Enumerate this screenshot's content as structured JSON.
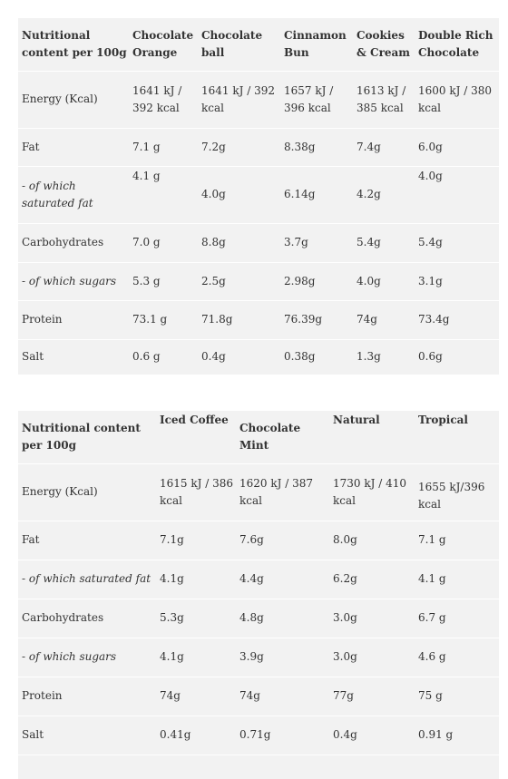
{
  "table1": {
    "headers": [
      "Nutritional content per 100g",
      "Chocolate Orange",
      "Chocolate ball",
      "Cinnamon Bun",
      "Cookies & Cream",
      "Double Rich Chocolate"
    ],
    "rows": [
      {
        "label": "Energy (Kcal)",
        "italic": false,
        "values": [
          "1641 kJ / 392 kcal",
          "1641 kJ / 392 kcal",
          "1657 kJ / 396 kcal",
          "1613 kJ / 385 kcal",
          "1600 kJ / 380 kcal"
        ]
      },
      {
        "label": "Fat",
        "italic": false,
        "values": [
          "7.1 g",
          "7.2g",
          "8.38g",
          "7.4g",
          "6.0g"
        ]
      },
      {
        "label": "- of which saturated fat",
        "italic": true,
        "values": [
          "4.1 g",
          "4.0g",
          "6.14g",
          "4.2g",
          "4.0g"
        ]
      },
      {
        "label": "Carbohydrates",
        "italic": false,
        "values": [
          "7.0 g",
          "8.8g",
          "3.7g",
          "5.4g",
          "5.4g"
        ]
      },
      {
        "label": "- of which sugars",
        "italic": true,
        "values": [
          "5.3 g",
          "2.5g",
          "2.98g",
          "4.0g",
          "3.1g"
        ]
      },
      {
        "label": "Protein",
        "italic": false,
        "values": [
          "73.1 g",
          "71.8g",
          "76.39g",
          "74g",
          "73.4g"
        ]
      },
      {
        "label": "Salt",
        "italic": false,
        "values": [
          "0.6 g",
          "0.4g",
          "0.38g",
          "1.3g",
          "0.6g"
        ]
      }
    ]
  },
  "table2": {
    "headers": [
      "Nutritional content per 100g",
      "Iced Coffee",
      "Chocolate Mint",
      "Natural",
      "Tropical"
    ],
    "rows": [
      {
        "label": "Energy (Kcal)",
        "italic": false,
        "values": [
          "1615 kJ / 386 kcal",
          "1620 kJ / 387 kcal",
          "1730 kJ / 410 kcal",
          "1655 kJ/396 kcal"
        ]
      },
      {
        "label": "Fat",
        "italic": false,
        "values": [
          "7.1g",
          "7.6g",
          "8.0g",
          "7.1 g"
        ]
      },
      {
        "label": "- of which saturated fat",
        "italic": true,
        "values": [
          "4.1g",
          "4.4g",
          "6.2g",
          "4.1 g"
        ]
      },
      {
        "label": "Carbohydrates",
        "italic": false,
        "values": [
          "5.3g",
          "4.8g",
          "3.0g",
          "6.7 g"
        ]
      },
      {
        "label": "- of which sugars",
        "italic": true,
        "values": [
          "4.1g",
          "3.9g",
          "3.0g",
          "4.6 g"
        ]
      },
      {
        "label": "Protein",
        "italic": false,
        "values": [
          "74g",
          "74g",
          "77g",
          "75 g"
        ]
      },
      {
        "label": "Salt",
        "italic": false,
        "values": [
          "0.41g",
          "0.71g",
          "0.4g",
          "0.91 g"
        ]
      }
    ]
  }
}
